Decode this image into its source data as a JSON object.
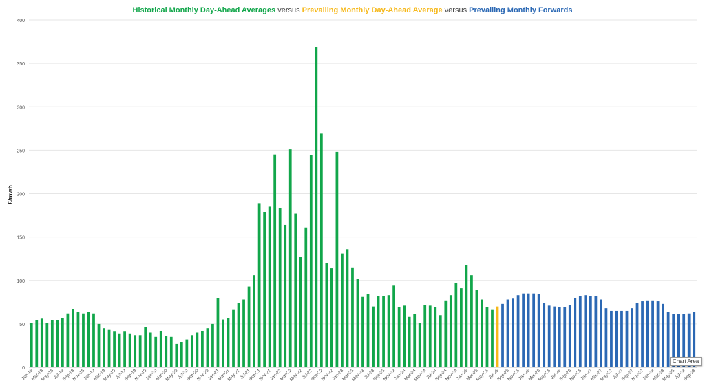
{
  "title": {
    "part1": "Historical Monthly Day-Ahead Averages",
    "sep1": " versus ",
    "part2": "Prevailing Monthly Day-Ahead Average",
    "sep2": " versus ",
    "part3": "Prevailing Monthly Forwards"
  },
  "tooltip": "Chart Area",
  "colors": {
    "historical": "#11a64a",
    "prevailing": "#f6b81a",
    "forwards": "#2b68b4"
  },
  "chart_data": {
    "type": "bar",
    "ylabel": "£/mwh",
    "ylim": [
      0,
      400
    ],
    "yticks": [
      0,
      50,
      100,
      150,
      200,
      250,
      300,
      350,
      400
    ],
    "grid": true,
    "start": "2018-01",
    "end": "2028-09",
    "xtick_labels": [
      "Jan-18",
      "Mar-18",
      "May-18",
      "Jul-18",
      "Sep-18",
      "Nov-18",
      "Jan-19",
      "Mar-19",
      "May-19",
      "Jul-19",
      "Sep-19",
      "Nov-19",
      "Jan-20",
      "Mar-20",
      "May-20",
      "Jul-20",
      "Sep-20",
      "Nov-20",
      "Jan-21",
      "Mar-21",
      "May-21",
      "Jul-21",
      "Sep-21",
      "Nov-21",
      "Jan-22",
      "Mar-22",
      "May-22",
      "Jul-22",
      "Sep-22",
      "Nov-22",
      "Jan-23",
      "Mar-23",
      "May-23",
      "Jul-23",
      "Sep-23",
      "Nov-23",
      "Jan-24",
      "Mar-24",
      "May-24",
      "Jul-24",
      "Sep-24",
      "Nov-24",
      "Jan-25",
      "Mar-25",
      "May-25",
      "Jul-25",
      "Sep-25",
      "Nov-25",
      "Jan-26",
      "Mar-26",
      "May-26",
      "Jul-26",
      "Sep-26",
      "Nov-26",
      "Jan-27",
      "Mar-27",
      "May-27",
      "Jul-27",
      "Sep-27",
      "Nov-27",
      "Jan-28",
      "Mar-28",
      "May-28",
      "Jul-28",
      "Sep-28"
    ],
    "series": [
      {
        "name": "Historical Monthly Day-Ahead Averages",
        "values": [
          51,
          54,
          56,
          51,
          54,
          54,
          57,
          62,
          67,
          64,
          62,
          64,
          62,
          50,
          45,
          43,
          41,
          39,
          41,
          39,
          37,
          37,
          46,
          40,
          35,
          42,
          36,
          35,
          27,
          29,
          32,
          37,
          40,
          42,
          45,
          50,
          80,
          55,
          57,
          66,
          74,
          78,
          93,
          106,
          189,
          179,
          185,
          245,
          183,
          164,
          251,
          177,
          127,
          161,
          244,
          369,
          269,
          120,
          114,
          248,
          131,
          136,
          115,
          102,
          81,
          84,
          70,
          82,
          82,
          83,
          94,
          69,
          71,
          58,
          61,
          51,
          72,
          71,
          69,
          60,
          77,
          83,
          97,
          91,
          118,
          106,
          89,
          78,
          69,
          66
        ]
      },
      {
        "name": "Prevailing Monthly Day-Ahead Average",
        "values": [
          70
        ]
      },
      {
        "name": "Prevailing Monthly Forwards",
        "values": [
          73,
          78,
          79,
          83,
          85,
          85,
          85,
          84,
          74,
          71,
          70,
          69,
          69,
          72,
          80,
          82,
          83,
          82,
          82,
          78,
          68,
          65,
          65,
          65,
          65,
          68,
          74,
          76,
          77,
          77,
          76,
          73,
          64,
          61,
          61,
          61,
          62,
          64
        ]
      }
    ]
  }
}
